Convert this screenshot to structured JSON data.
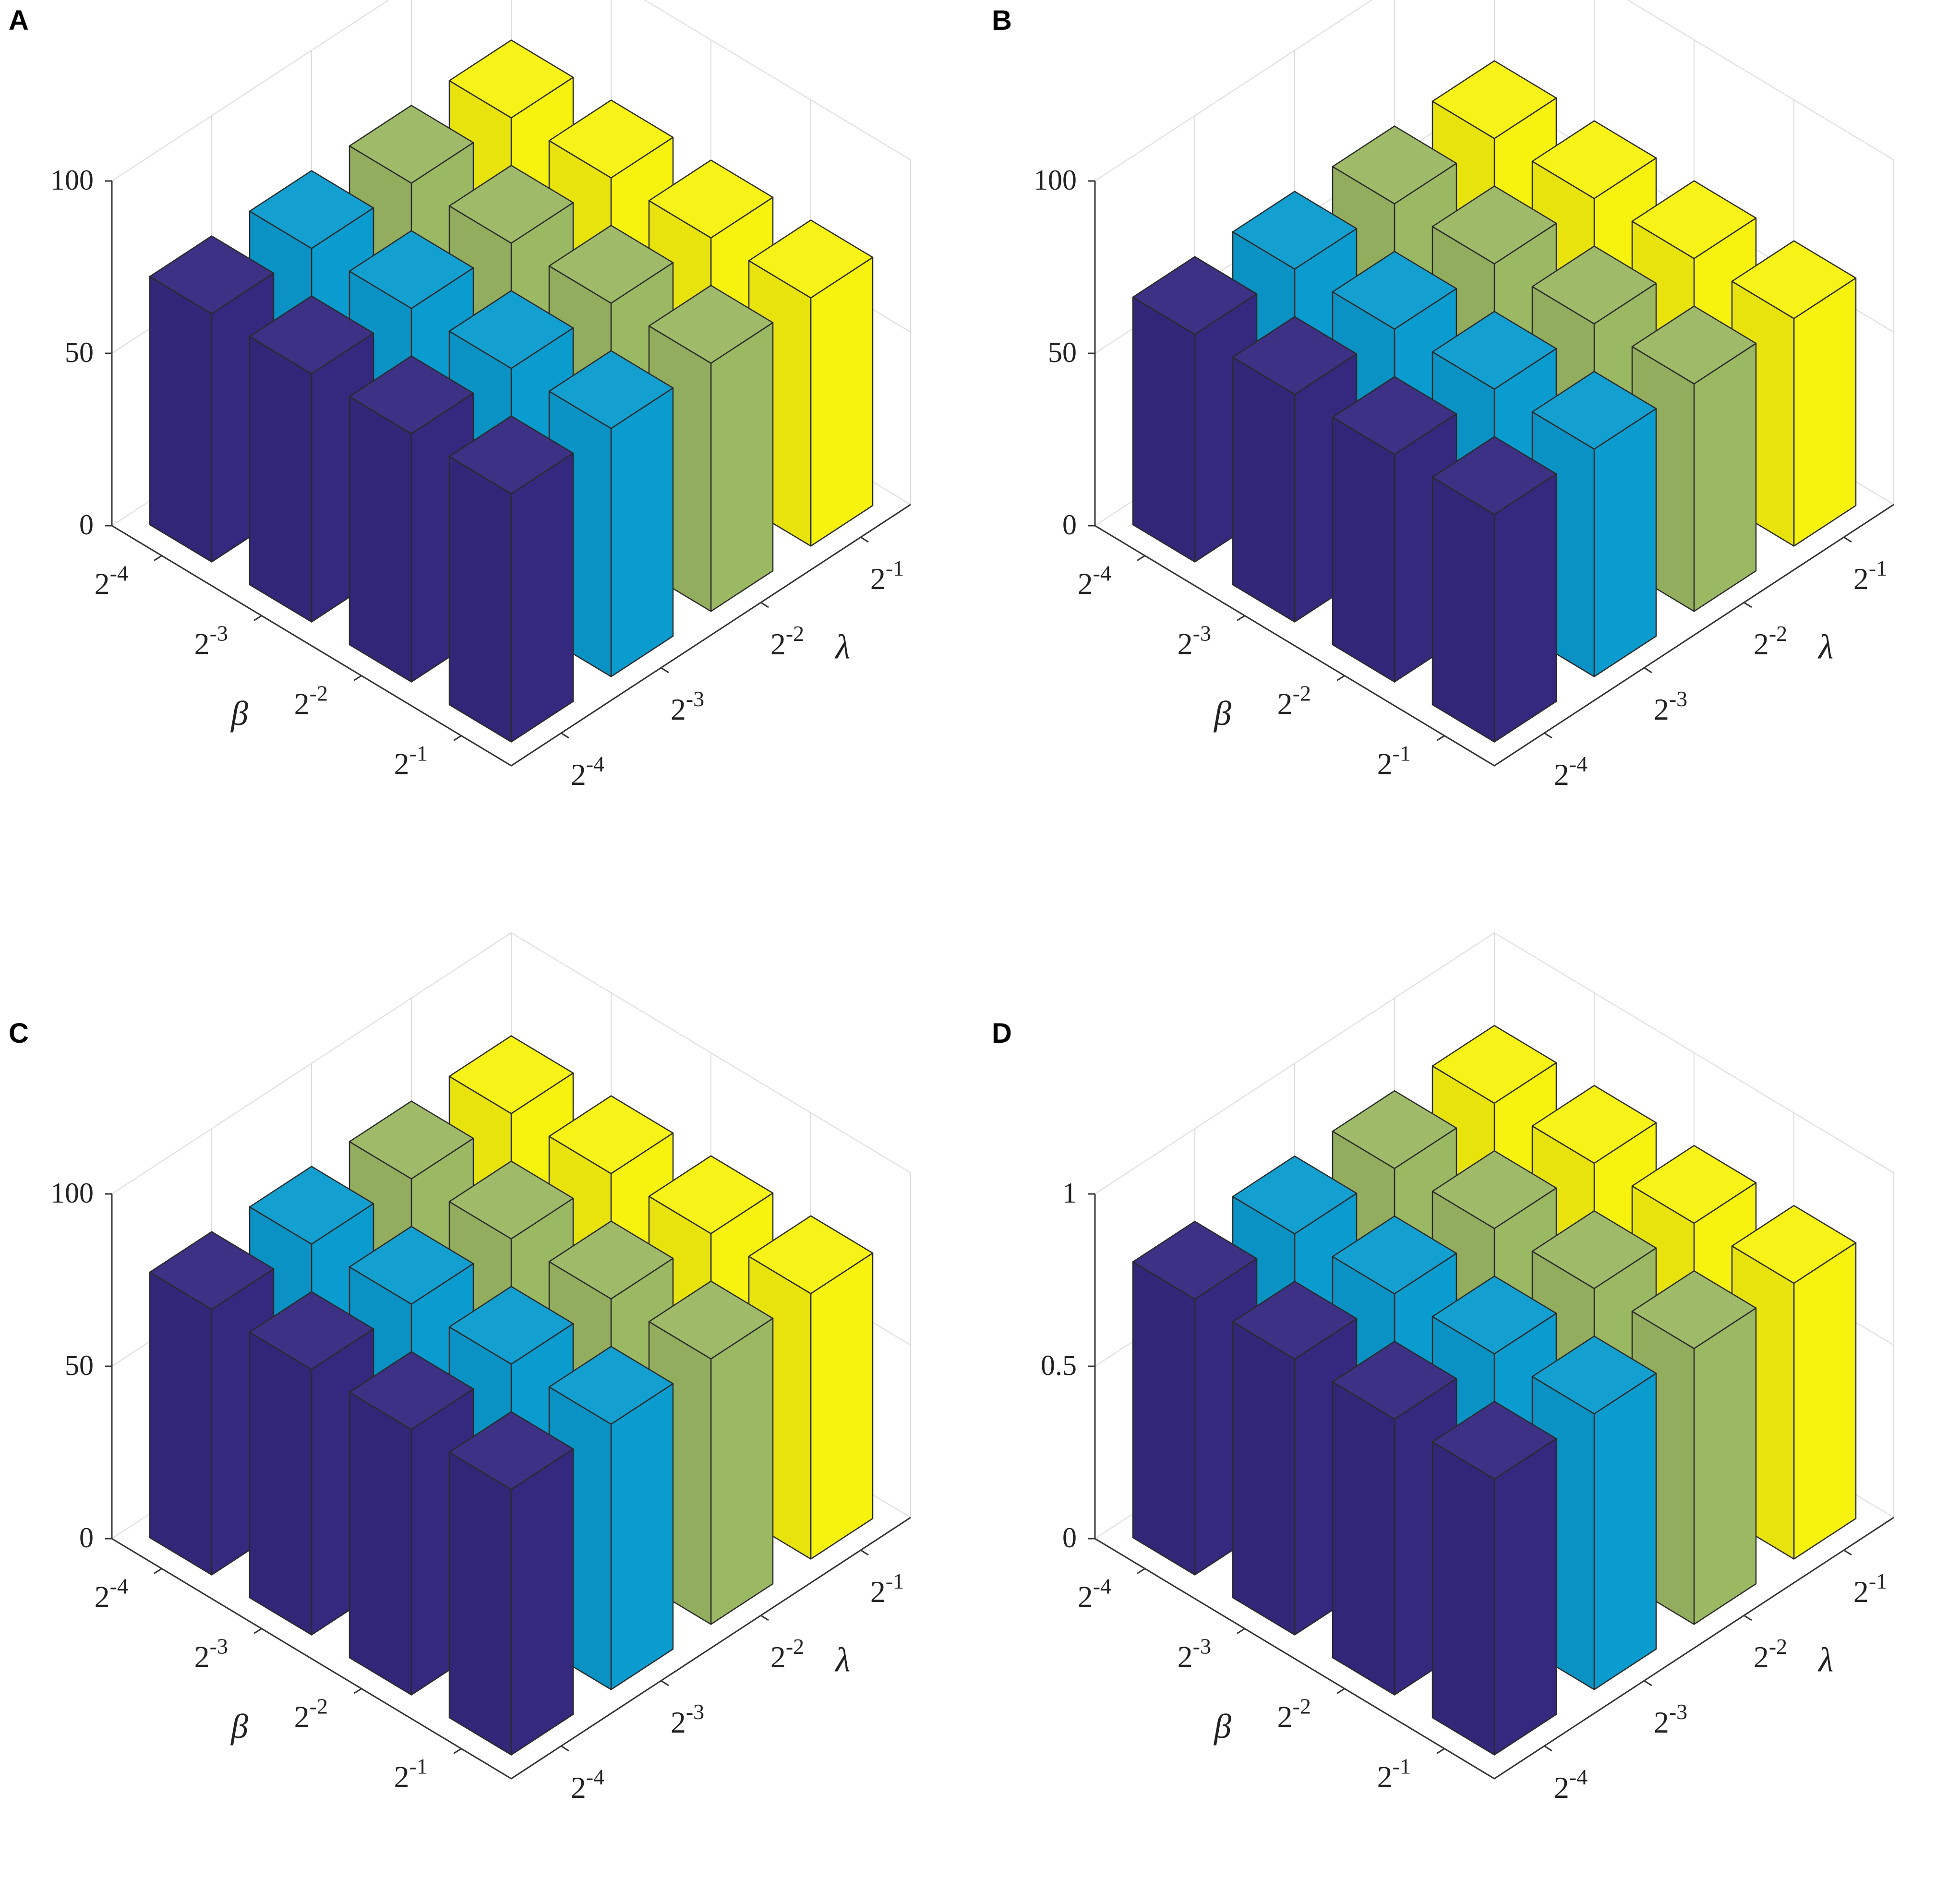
{
  "chart_data": [
    {
      "panel": "A",
      "type": "bar3d",
      "xlabel": "λ",
      "ylabel": "β",
      "x_categories": [
        "2-4",
        "2-3",
        "2-2",
        "2-1"
      ],
      "y_categories": [
        "2-4",
        "2-3",
        "2-2",
        "2-1"
      ],
      "zlim": [
        0,
        100
      ],
      "zticks": [
        "0",
        "50",
        "100"
      ],
      "grid": true,
      "colors": [
        "#34287f",
        "#0a9bcf",
        "#9bb863",
        "#f7f20e"
      ],
      "values": [
        [
          72,
          72,
          72,
          72
        ],
        [
          72,
          72,
          72,
          72
        ],
        [
          72,
          72,
          72,
          72
        ],
        [
          72,
          72,
          72,
          72
        ]
      ]
    },
    {
      "panel": "B",
      "type": "bar3d",
      "xlabel": "λ",
      "ylabel": "β",
      "x_categories": [
        "2-4",
        "2-3",
        "2-2",
        "2-1"
      ],
      "y_categories": [
        "2-4",
        "2-3",
        "2-2",
        "2-1"
      ],
      "zlim": [
        0,
        100
      ],
      "zticks": [
        "0",
        "50",
        "100"
      ],
      "grid": true,
      "colors": [
        "#34287f",
        "#0a9bcf",
        "#9bb863",
        "#f7f20e"
      ],
      "values": [
        [
          66,
          66,
          66,
          66
        ],
        [
          66,
          66,
          66,
          66
        ],
        [
          66,
          66,
          66,
          66
        ],
        [
          66,
          66,
          66,
          66
        ]
      ]
    },
    {
      "panel": "C",
      "type": "bar3d",
      "xlabel": "λ",
      "ylabel": "β",
      "x_categories": [
        "2-4",
        "2-3",
        "2-2",
        "2-1"
      ],
      "y_categories": [
        "2-4",
        "2-3",
        "2-2",
        "2-1"
      ],
      "zlim": [
        0,
        100
      ],
      "zticks": [
        "0",
        "50",
        "100"
      ],
      "grid": true,
      "colors": [
        "#34287f",
        "#0a9bcf",
        "#9bb863",
        "#f7f20e"
      ],
      "values": [
        [
          77,
          77,
          77,
          77
        ],
        [
          77,
          77,
          77,
          77
        ],
        [
          77,
          77,
          77,
          77
        ],
        [
          77,
          77,
          77,
          77
        ]
      ]
    },
    {
      "panel": "D",
      "type": "bar3d",
      "xlabel": "λ",
      "ylabel": "β",
      "x_categories": [
        "2-4",
        "2-3",
        "2-2",
        "2-1"
      ],
      "y_categories": [
        "2-4",
        "2-3",
        "2-2",
        "2-1"
      ],
      "zlim": [
        0,
        1
      ],
      "zticks": [
        "0",
        "0.5",
        "1"
      ],
      "grid": true,
      "colors": [
        "#34287f",
        "#0a9bcf",
        "#9bb863",
        "#f7f20e"
      ],
      "values": [
        [
          0.8,
          0.8,
          0.8,
          0.8
        ],
        [
          0.8,
          0.8,
          0.8,
          0.8
        ],
        [
          0.8,
          0.8,
          0.8,
          0.8
        ],
        [
          0.8,
          0.8,
          0.8,
          0.8
        ]
      ]
    }
  ]
}
